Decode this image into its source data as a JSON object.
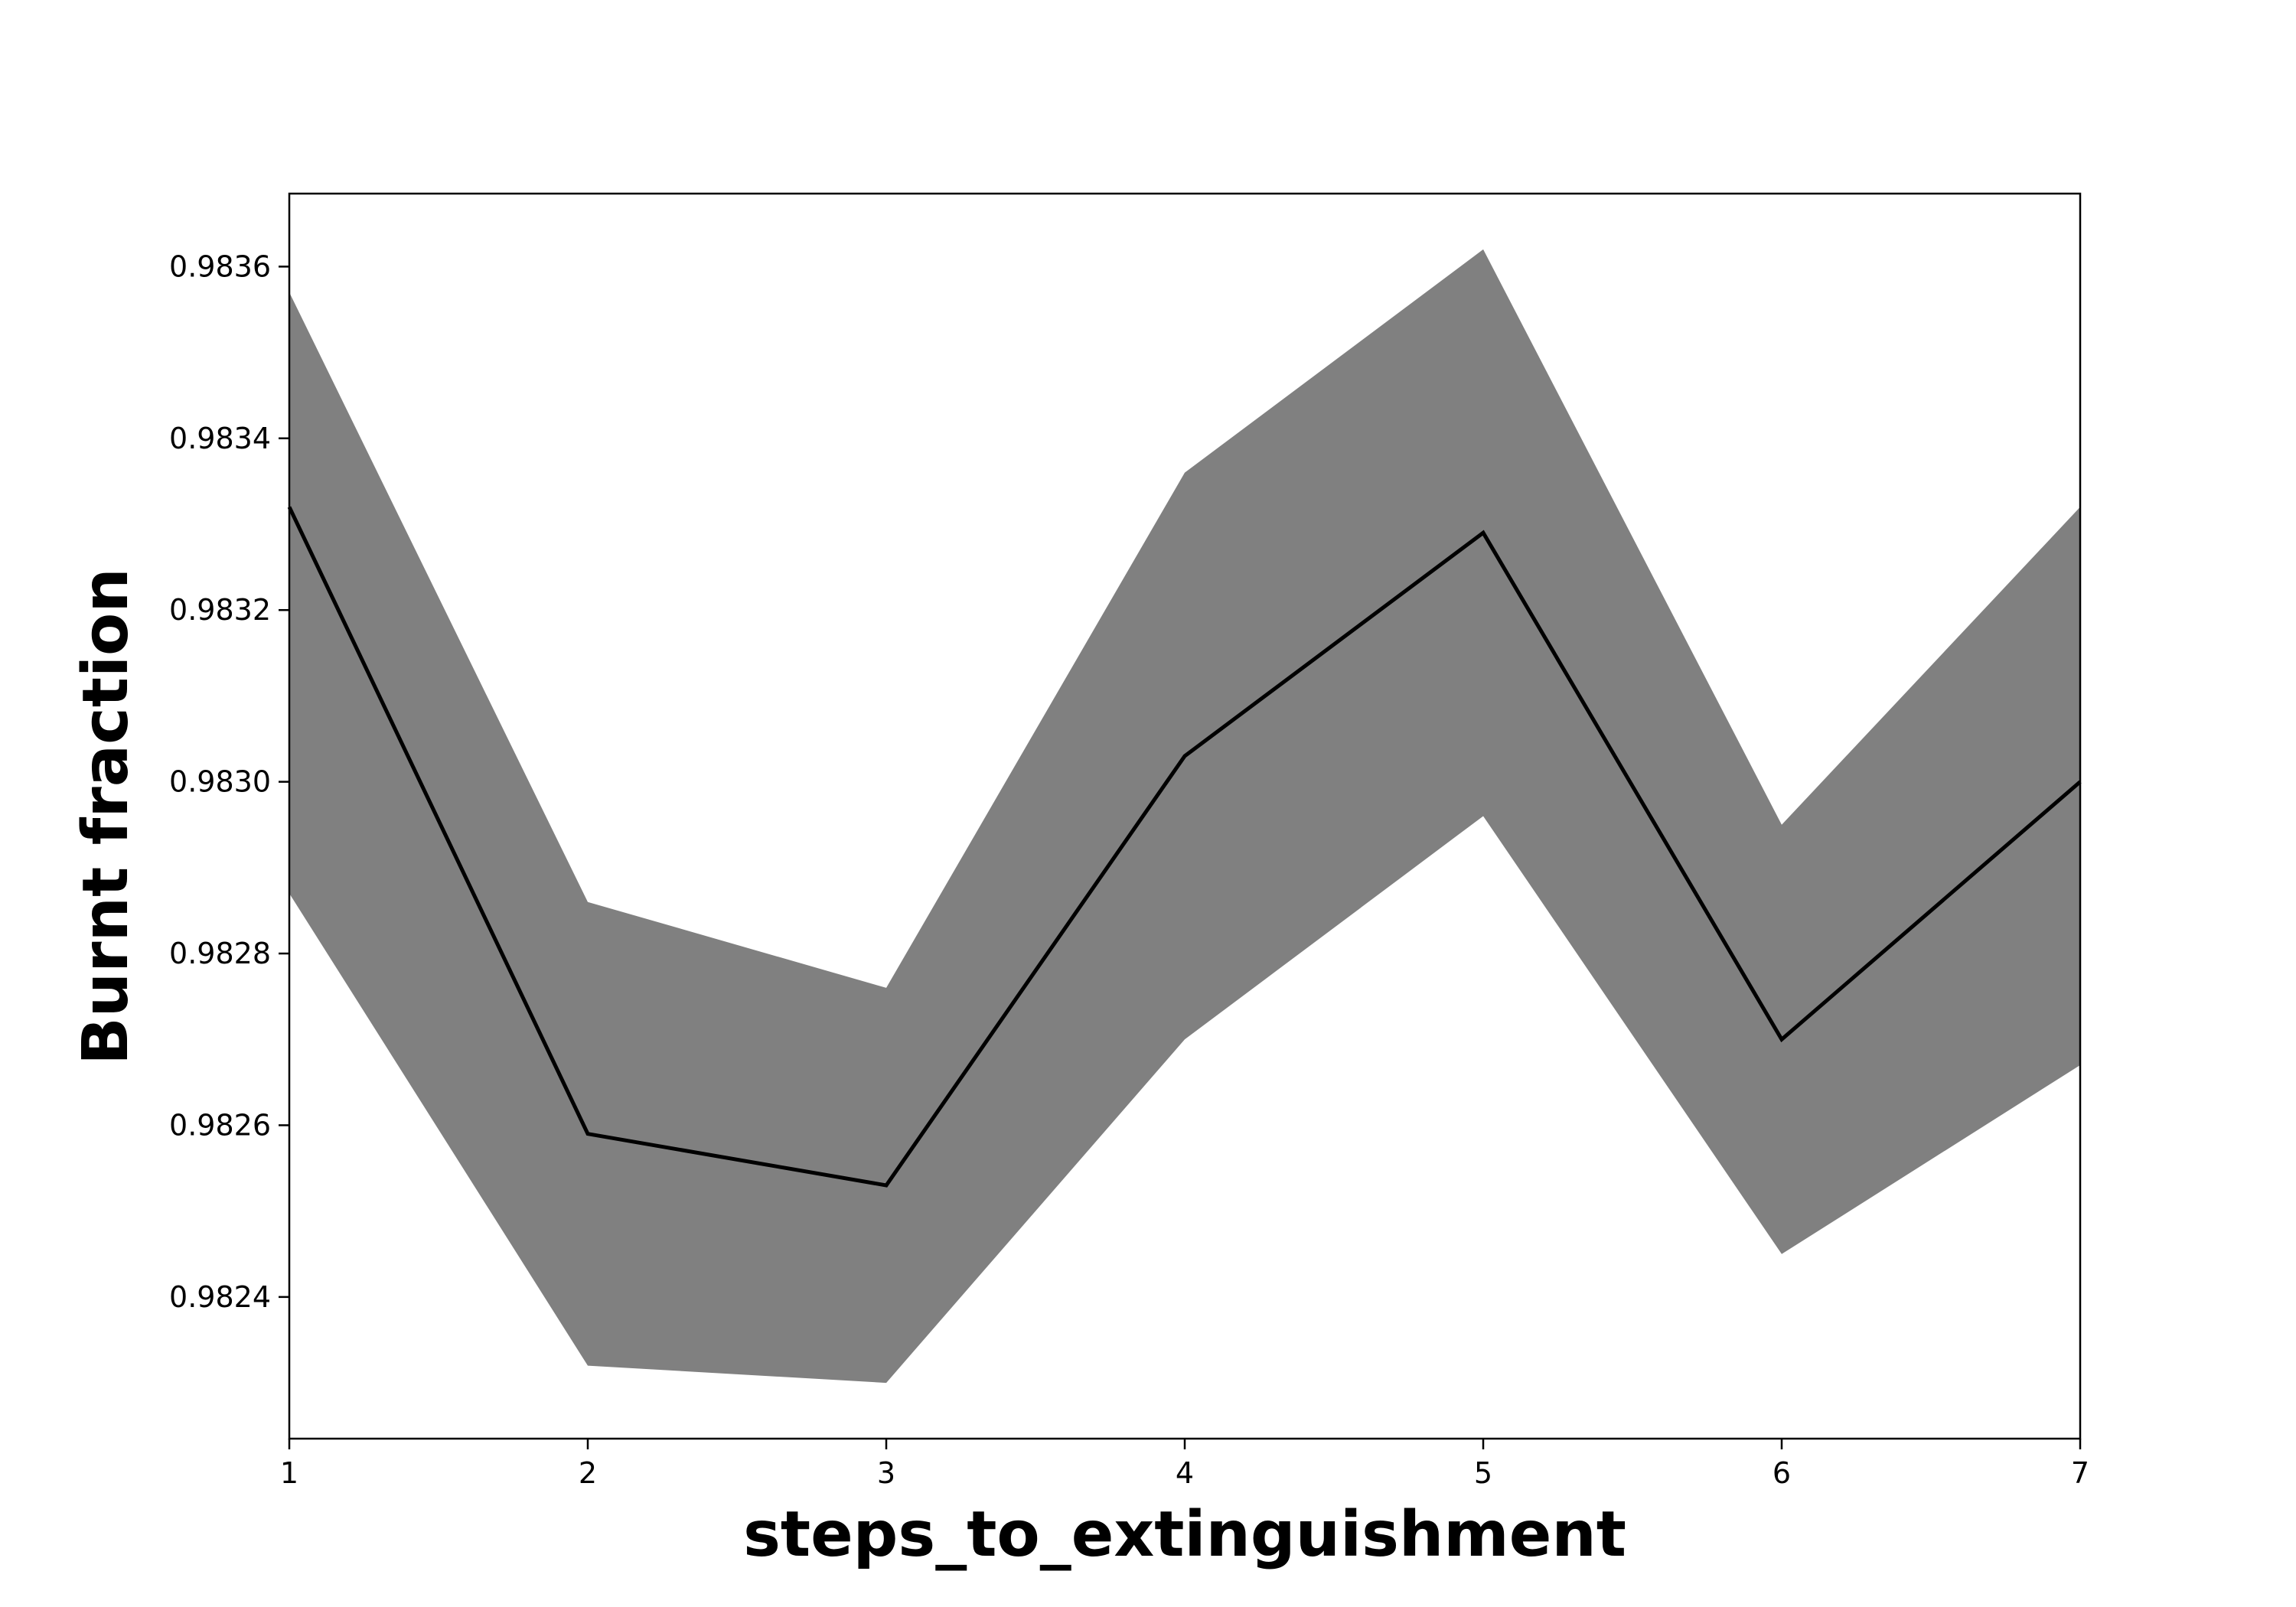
{
  "chart_data": {
    "type": "line",
    "title": "",
    "xlabel": "steps_to_extinguishment",
    "ylabel": "Burnt fraction",
    "x": [
      1,
      2,
      3,
      4,
      5,
      6,
      7
    ],
    "series": [
      {
        "values": [
          0.98332,
          0.98259,
          0.98253,
          0.98303,
          0.98329,
          0.9827,
          0.983
        ],
        "lower": [
          0.98287,
          0.98232,
          0.9823,
          0.9827,
          0.98296,
          0.98245,
          0.98267
        ],
        "upper": [
          0.98357,
          0.98286,
          0.98276,
          0.98336,
          0.98362,
          0.98295,
          0.98332
        ]
      }
    ],
    "xlim": [
      1,
      7
    ],
    "ylim": [
      0.982235,
      0.983685
    ],
    "xticks": [
      "1",
      "2",
      "3",
      "4",
      "5",
      "6",
      "7"
    ],
    "yticks": [
      {
        "value": 0.9824,
        "label": "0.9824"
      },
      {
        "value": 0.9826,
        "label": "0.9826"
      },
      {
        "value": 0.9828,
        "label": "0.9828"
      },
      {
        "value": 0.983,
        "label": "0.9830"
      },
      {
        "value": 0.9832,
        "label": "0.9832"
      },
      {
        "value": 0.9834,
        "label": "0.9834"
      },
      {
        "value": 0.9836,
        "label": "0.9836"
      }
    ],
    "grid": false,
    "colors": {
      "line": "#000000",
      "band": "#808080"
    }
  }
}
